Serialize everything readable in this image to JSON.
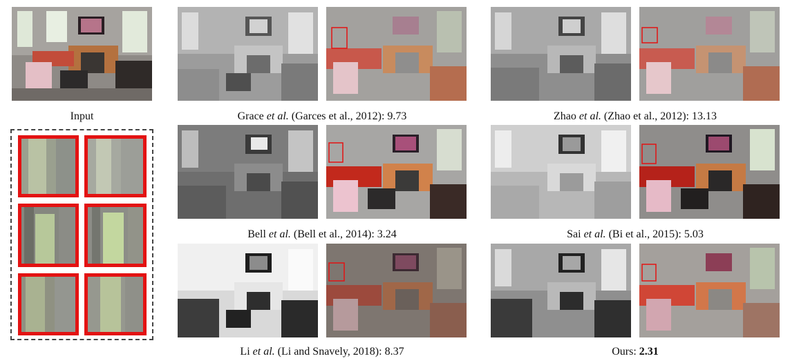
{
  "figure": {
    "input_caption": "Input",
    "rows": [
      {
        "left": {
          "prefix": "Grace ",
          "etal": "et al.",
          "cite": " (Garces et al., 2012): ",
          "score": "9.73"
        },
        "right": {
          "prefix": "Zhao ",
          "etal": "et al.",
          "cite": " (Zhao et al., 2012): ",
          "score": "13.13"
        }
      },
      {
        "left": {
          "prefix": "Bell ",
          "etal": "et al.",
          "cite": " (Bell et al., 2014): ",
          "score": "3.24"
        },
        "right": {
          "prefix": "Sai ",
          "etal": "et al.",
          "cite": " (Bi et al., 2015): ",
          "score": "5.03"
        }
      },
      {
        "left": {
          "prefix": "Li ",
          "etal": "et al.",
          "cite": " (Li and Snavely, 2018): ",
          "score": "8.37"
        },
        "right": {
          "prefix": "Ours: ",
          "etal": "",
          "cite": "",
          "score": "2.31"
        }
      }
    ]
  },
  "colors": {
    "highlight_red": "#e31212",
    "inset_border": "#444444"
  }
}
